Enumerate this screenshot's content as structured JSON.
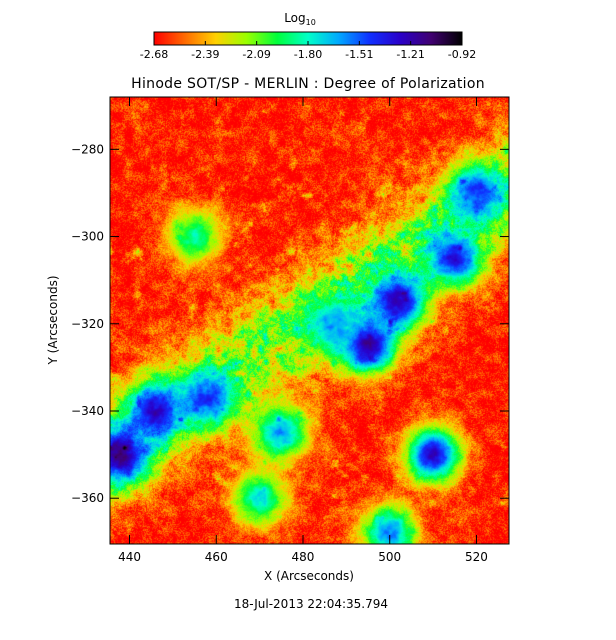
{
  "chart_data": {
    "type": "heatmap",
    "title": "Hinode SOT/SP - MERLIN : Degree of Polarization",
    "subtitle": "18-Jul-2013 22:04:35.794",
    "xlabel": "X (Arcseconds)",
    "ylabel": "Y (Arcseconds)",
    "xlim": [
      435.5,
      527.5
    ],
    "ylim": [
      -370.5,
      -268
    ],
    "x_ticks": [
      440,
      460,
      480,
      500,
      520
    ],
    "y_ticks": [
      -280,
      -300,
      -320,
      -340,
      -360
    ],
    "grid": false,
    "colorbar": {
      "label": "Log",
      "label_subscript": "10",
      "range": [
        -2.68,
        -0.92
      ],
      "ticks": [
        "-2.68",
        "-2.39",
        "-2.09",
        "-1.80",
        "-1.51",
        "-1.21",
        "-0.92"
      ],
      "palette": [
        "#ff0000",
        "#ff6a00",
        "#ffd000",
        "#9aff00",
        "#00ff3c",
        "#00ffc8",
        "#00a8ff",
        "#1030ff",
        "#2a00c8",
        "#400070",
        "#000000"
      ]
    },
    "field_description": "Degree of polarization map; mostly red/orange (low) with a blue/purple (high) diagonal band from lower-left to upper-right and strong patches near (495,-325), (438,-350), (445,-340) and (510,-350).",
    "hot_regions": [
      {
        "x": 495,
        "y": -325,
        "value": -1.05
      },
      {
        "x": 502,
        "y": -315,
        "value": -1.15
      },
      {
        "x": 515,
        "y": -305,
        "value": -1.3
      },
      {
        "x": 438,
        "y": -350,
        "value": -1.05
      },
      {
        "x": 446,
        "y": -340,
        "value": -1.2
      },
      {
        "x": 458,
        "y": -337,
        "value": -1.4
      },
      {
        "x": 510,
        "y": -350,
        "value": -1.2
      },
      {
        "x": 520,
        "y": -290,
        "value": -1.4
      },
      {
        "x": 475,
        "y": -345,
        "value": -1.55
      },
      {
        "x": 487,
        "y": -320,
        "value": -1.6
      },
      {
        "x": 455,
        "y": -300,
        "value": -1.8
      },
      {
        "x": 500,
        "y": -368,
        "value": -1.5
      },
      {
        "x": 470,
        "y": -360,
        "value": -1.7
      }
    ]
  }
}
